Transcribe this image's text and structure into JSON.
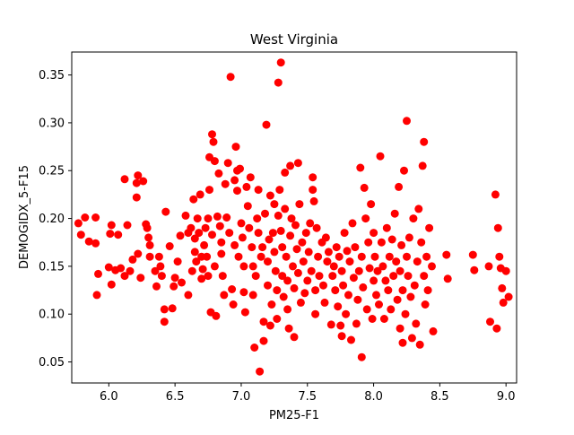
{
  "chart_data": {
    "type": "scatter",
    "title": "West Virginia",
    "xlabel": "PM25-F1",
    "ylabel": "DEMOGIDX_5-F15",
    "xlim": [
      5.72,
      9.08
    ],
    "ylim": [
      0.028,
      0.374
    ],
    "xticks": [
      6.0,
      6.5,
      7.0,
      7.5,
      8.0,
      8.5,
      9.0
    ],
    "xtick_labels": [
      "6.0",
      "6.5",
      "7.0",
      "7.5",
      "8.0",
      "8.5",
      "9.0"
    ],
    "yticks": [
      0.05,
      0.1,
      0.15,
      0.2,
      0.25,
      0.3,
      0.35
    ],
    "ytick_labels": [
      "0.05",
      "0.10",
      "0.15",
      "0.20",
      "0.25",
      "0.30",
      "0.35"
    ],
    "grid": false,
    "marker_color": "#ff0000",
    "points": [
      [
        5.77,
        0.195
      ],
      [
        5.79,
        0.183
      ],
      [
        5.82,
        0.201
      ],
      [
        5.85,
        0.176
      ],
      [
        5.9,
        0.174
      ],
      [
        5.9,
        0.201
      ],
      [
        5.91,
        0.12
      ],
      [
        5.92,
        0.142
      ],
      [
        6.0,
        0.149
      ],
      [
        6.01,
        0.184
      ],
      [
        6.02,
        0.131
      ],
      [
        6.02,
        0.193
      ],
      [
        6.05,
        0.146
      ],
      [
        6.07,
        0.183
      ],
      [
        6.09,
        0.148
      ],
      [
        6.12,
        0.241
      ],
      [
        6.12,
        0.14
      ],
      [
        6.14,
        0.193
      ],
      [
        6.16,
        0.145
      ],
      [
        6.18,
        0.157
      ],
      [
        6.21,
        0.222
      ],
      [
        6.21,
        0.237
      ],
      [
        6.22,
        0.163
      ],
      [
        6.22,
        0.245
      ],
      [
        6.24,
        0.138
      ],
      [
        6.26,
        0.239
      ],
      [
        6.28,
        0.194
      ],
      [
        6.29,
        0.19
      ],
      [
        6.3,
        0.18
      ],
      [
        6.31,
        0.172
      ],
      [
        6.31,
        0.16
      ],
      [
        6.35,
        0.145
      ],
      [
        6.36,
        0.129
      ],
      [
        6.38,
        0.16
      ],
      [
        6.39,
        0.15
      ],
      [
        6.4,
        0.14
      ],
      [
        6.42,
        0.092
      ],
      [
        6.42,
        0.105
      ],
      [
        6.43,
        0.207
      ],
      [
        6.46,
        0.171
      ],
      [
        6.48,
        0.106
      ],
      [
        6.49,
        0.129
      ],
      [
        6.5,
        0.138
      ],
      [
        6.52,
        0.155
      ],
      [
        6.54,
        0.182
      ],
      [
        6.55,
        0.133
      ],
      [
        6.58,
        0.203
      ],
      [
        6.6,
        0.185
      ],
      [
        6.6,
        0.12
      ],
      [
        6.62,
        0.19
      ],
      [
        6.63,
        0.145
      ],
      [
        6.64,
        0.22
      ],
      [
        6.65,
        0.179
      ],
      [
        6.65,
        0.165
      ],
      [
        6.66,
        0.155
      ],
      [
        6.67,
        0.2
      ],
      [
        6.68,
        0.185
      ],
      [
        6.69,
        0.225
      ],
      [
        6.7,
        0.137
      ],
      [
        6.7,
        0.16
      ],
      [
        6.71,
        0.147
      ],
      [
        6.72,
        0.172
      ],
      [
        6.73,
        0.19
      ],
      [
        6.74,
        0.16
      ],
      [
        6.75,
        0.14
      ],
      [
        6.75,
        0.2
      ],
      [
        6.76,
        0.23
      ],
      [
        6.76,
        0.264
      ],
      [
        6.77,
        0.102
      ],
      [
        6.78,
        0.183
      ],
      [
        6.78,
        0.288
      ],
      [
        6.79,
        0.28
      ],
      [
        6.8,
        0.26
      ],
      [
        6.8,
        0.15
      ],
      [
        6.81,
        0.098
      ],
      [
        6.82,
        0.202
      ],
      [
        6.83,
        0.247
      ],
      [
        6.84,
        0.192
      ],
      [
        6.85,
        0.175
      ],
      [
        6.85,
        0.163
      ],
      [
        6.86,
        0.14
      ],
      [
        6.87,
        0.12
      ],
      [
        6.88,
        0.236
      ],
      [
        6.89,
        0.201
      ],
      [
        6.9,
        0.258
      ],
      [
        6.91,
        0.185
      ],
      [
        6.92,
        0.348
      ],
      [
        6.93,
        0.126
      ],
      [
        6.94,
        0.11
      ],
      [
        6.95,
        0.172
      ],
      [
        6.95,
        0.24
      ],
      [
        6.96,
        0.275
      ],
      [
        6.97,
        0.25
      ],
      [
        6.97,
        0.229
      ],
      [
        6.98,
        0.16
      ],
      [
        6.99,
        0.252
      ],
      [
        7.0,
        0.195
      ],
      [
        7.01,
        0.18
      ],
      [
        7.02,
        0.15
      ],
      [
        7.02,
        0.123
      ],
      [
        7.03,
        0.102
      ],
      [
        7.04,
        0.233
      ],
      [
        7.05,
        0.213
      ],
      [
        7.06,
        0.19
      ],
      [
        7.07,
        0.243
      ],
      [
        7.08,
        0.17
      ],
      [
        7.09,
        0.15
      ],
      [
        7.09,
        0.12
      ],
      [
        7.1,
        0.065
      ],
      [
        7.11,
        0.14
      ],
      [
        7.12,
        0.2
      ],
      [
        7.13,
        0.185
      ],
      [
        7.13,
        0.23
      ],
      [
        7.14,
        0.04
      ],
      [
        7.15,
        0.16
      ],
      [
        7.16,
        0.17
      ],
      [
        7.17,
        0.072
      ],
      [
        7.17,
        0.092
      ],
      [
        7.18,
        0.205
      ],
      [
        7.19,
        0.298
      ],
      [
        7.2,
        0.13
      ],
      [
        7.2,
        0.155
      ],
      [
        7.21,
        0.178
      ],
      [
        7.22,
        0.224
      ],
      [
        7.22,
        0.088
      ],
      [
        7.23,
        0.11
      ],
      [
        7.24,
        0.185
      ],
      [
        7.25,
        0.215
      ],
      [
        7.25,
        0.165
      ],
      [
        7.26,
        0.145
      ],
      [
        7.27,
        0.125
      ],
      [
        7.27,
        0.095
      ],
      [
        7.28,
        0.342
      ],
      [
        7.28,
        0.203
      ],
      [
        7.29,
        0.23
      ],
      [
        7.3,
        0.363
      ],
      [
        7.3,
        0.187
      ],
      [
        7.31,
        0.17
      ],
      [
        7.31,
        0.14
      ],
      [
        7.32,
        0.118
      ],
      [
        7.33,
        0.248
      ],
      [
        7.33,
        0.21
      ],
      [
        7.34,
        0.16
      ],
      [
        7.35,
        0.135
      ],
      [
        7.35,
        0.105
      ],
      [
        7.36,
        0.085
      ],
      [
        7.37,
        0.255
      ],
      [
        7.37,
        0.182
      ],
      [
        7.38,
        0.2
      ],
      [
        7.39,
        0.15
      ],
      [
        7.4,
        0.127
      ],
      [
        7.4,
        0.076
      ],
      [
        7.41,
        0.193
      ],
      [
        7.42,
        0.168
      ],
      [
        7.43,
        0.258
      ],
      [
        7.43,
        0.143
      ],
      [
        7.44,
        0.215
      ],
      [
        7.45,
        0.112
      ],
      [
        7.46,
        0.175
      ],
      [
        7.47,
        0.155
      ],
      [
        7.48,
        0.122
      ],
      [
        7.49,
        0.185
      ],
      [
        7.5,
        0.135
      ],
      [
        7.51,
        0.165
      ],
      [
        7.52,
        0.195
      ],
      [
        7.53,
        0.145
      ],
      [
        7.54,
        0.23
      ],
      [
        7.54,
        0.243
      ],
      [
        7.55,
        0.218
      ],
      [
        7.56,
        0.125
      ],
      [
        7.56,
        0.1
      ],
      [
        7.57,
        0.19
      ],
      [
        7.58,
        0.16
      ],
      [
        7.59,
        0.14
      ],
      [
        7.61,
        0.175
      ],
      [
        7.62,
        0.13
      ],
      [
        7.63,
        0.112
      ],
      [
        7.64,
        0.18
      ],
      [
        7.65,
        0.155
      ],
      [
        7.66,
        0.165
      ],
      [
        7.68,
        0.089
      ],
      [
        7.69,
        0.14
      ],
      [
        7.7,
        0.15
      ],
      [
        7.71,
        0.125
      ],
      [
        7.72,
        0.17
      ],
      [
        7.73,
        0.108
      ],
      [
        7.74,
        0.16
      ],
      [
        7.75,
        0.088
      ],
      [
        7.76,
        0.145
      ],
      [
        7.76,
        0.077
      ],
      [
        7.77,
        0.13
      ],
      [
        7.78,
        0.185
      ],
      [
        7.79,
        0.1
      ],
      [
        7.8,
        0.166
      ],
      [
        7.81,
        0.12
      ],
      [
        7.82,
        0.155
      ],
      [
        7.83,
        0.073
      ],
      [
        7.84,
        0.195
      ],
      [
        7.85,
        0.138
      ],
      [
        7.86,
        0.17
      ],
      [
        7.87,
        0.09
      ],
      [
        7.88,
        0.115
      ],
      [
        7.89,
        0.145
      ],
      [
        7.9,
        0.253
      ],
      [
        7.91,
        0.055
      ],
      [
        7.91,
        0.16
      ],
      [
        7.92,
        0.128
      ],
      [
        7.93,
        0.232
      ],
      [
        7.94,
        0.2
      ],
      [
        7.95,
        0.105
      ],
      [
        7.96,
        0.175
      ],
      [
        7.97,
        0.148
      ],
      [
        7.98,
        0.215
      ],
      [
        7.99,
        0.095
      ],
      [
        8.0,
        0.185
      ],
      [
        8.0,
        0.135
      ],
      [
        8.01,
        0.16
      ],
      [
        8.02,
        0.12
      ],
      [
        8.03,
        0.145
      ],
      [
        8.04,
        0.11
      ],
      [
        8.05,
        0.265
      ],
      [
        8.06,
        0.175
      ],
      [
        8.07,
        0.15
      ],
      [
        8.08,
        0.095
      ],
      [
        8.09,
        0.135
      ],
      [
        8.1,
        0.19
      ],
      [
        8.11,
        0.125
      ],
      [
        8.12,
        0.16
      ],
      [
        8.13,
        0.105
      ],
      [
        8.14,
        0.178
      ],
      [
        8.15,
        0.14
      ],
      [
        8.16,
        0.205
      ],
      [
        8.17,
        0.155
      ],
      [
        8.18,
        0.115
      ],
      [
        8.19,
        0.233
      ],
      [
        8.2,
        0.145
      ],
      [
        8.2,
        0.085
      ],
      [
        8.21,
        0.172
      ],
      [
        8.22,
        0.125
      ],
      [
        8.22,
        0.07
      ],
      [
        8.23,
        0.25
      ],
      [
        8.24,
        0.1
      ],
      [
        8.25,
        0.302
      ],
      [
        8.25,
        0.16
      ],
      [
        8.26,
        0.14
      ],
      [
        8.27,
        0.18
      ],
      [
        8.28,
        0.118
      ],
      [
        8.29,
        0.075
      ],
      [
        8.3,
        0.2
      ],
      [
        8.31,
        0.13
      ],
      [
        8.32,
        0.09
      ],
      [
        8.33,
        0.155
      ],
      [
        8.34,
        0.21
      ],
      [
        8.35,
        0.068
      ],
      [
        8.36,
        0.175
      ],
      [
        8.37,
        0.255
      ],
      [
        8.38,
        0.28
      ],
      [
        8.38,
        0.14
      ],
      [
        8.39,
        0.11
      ],
      [
        8.4,
        0.16
      ],
      [
        8.41,
        0.125
      ],
      [
        8.42,
        0.19
      ],
      [
        8.44,
        0.15
      ],
      [
        8.45,
        0.082
      ],
      [
        8.55,
        0.162
      ],
      [
        8.56,
        0.137
      ],
      [
        8.75,
        0.162
      ],
      [
        8.76,
        0.146
      ],
      [
        8.87,
        0.15
      ],
      [
        8.88,
        0.092
      ],
      [
        8.92,
        0.225
      ],
      [
        8.93,
        0.085
      ],
      [
        8.94,
        0.19
      ],
      [
        8.95,
        0.16
      ],
      [
        8.96,
        0.148
      ],
      [
        8.97,
        0.127
      ],
      [
        8.98,
        0.112
      ],
      [
        9.0,
        0.145
      ],
      [
        9.02,
        0.118
      ]
    ]
  }
}
